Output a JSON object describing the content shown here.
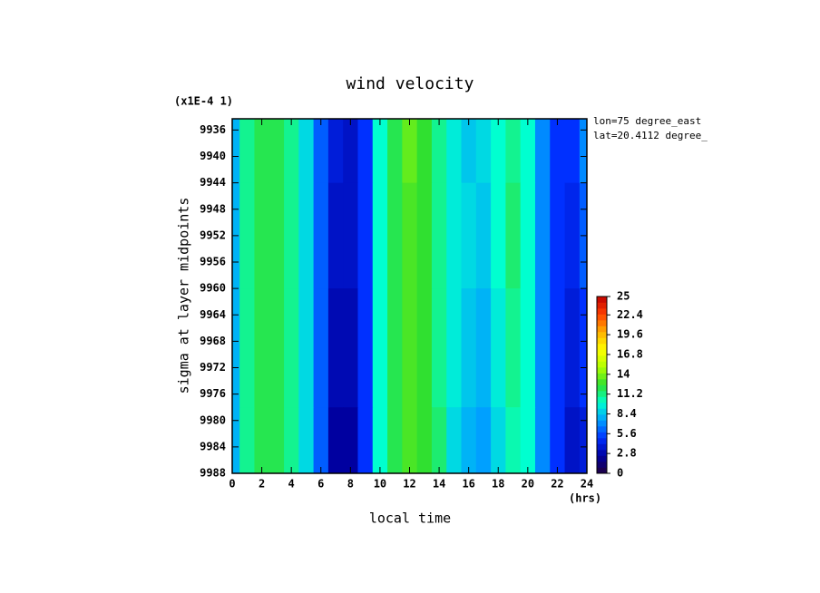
{
  "chart_data": {
    "type": "contour",
    "title": "wind velocity",
    "multiplier_label": "(x1E-4 1)",
    "x_label": "local time",
    "x_unit": "(hrs)",
    "y_label": "sigma at layer midpoints",
    "annotations": [
      "lon=75 degree_east",
      "lat=20.4112 degree_"
    ],
    "x": [
      0,
      1,
      2,
      3,
      4,
      5,
      6,
      7,
      8,
      9,
      10,
      11,
      12,
      13,
      14,
      15,
      16,
      17,
      18,
      19,
      20,
      21,
      22,
      23,
      24
    ],
    "y": [
      9936,
      9952,
      9968,
      9988
    ],
    "z": [
      [
        8,
        11,
        12,
        12,
        11,
        9,
        6,
        4,
        3.5,
        5,
        10,
        12,
        13.5,
        12.5,
        11,
        9.5,
        8.5,
        9,
        10,
        11,
        10,
        7,
        5,
        5,
        7
      ],
      [
        8,
        11,
        12,
        12,
        11,
        9,
        6,
        3.5,
        3.5,
        5,
        10,
        12,
        13,
        12.5,
        11,
        9.5,
        9,
        8.5,
        10,
        11.5,
        10,
        7,
        5,
        4.5,
        6
      ],
      [
        8,
        11,
        12,
        12,
        11,
        9,
        6,
        3,
        3,
        5,
        10,
        12,
        13,
        12.5,
        11,
        9.5,
        8.5,
        8,
        9.5,
        11,
        10,
        7,
        5,
        4,
        5
      ],
      [
        8,
        11,
        12,
        12,
        11,
        9,
        6,
        2.5,
        2.5,
        5,
        10,
        12,
        13,
        12.5,
        11.5,
        9,
        8,
        7.5,
        9,
        10.5,
        10,
        7,
        5,
        3.5,
        4
      ]
    ],
    "xlim": [
      0,
      24
    ],
    "xticks": [
      0,
      2,
      4,
      6,
      8,
      10,
      12,
      14,
      16,
      18,
      20,
      22,
      24
    ],
    "ylim": [
      9988,
      9934.3
    ],
    "yticks": [
      9936,
      9940,
      9944,
      9948,
      9952,
      9956,
      9960,
      9964,
      9968,
      9972,
      9976,
      9980,
      9984,
      9988
    ],
    "colorbar_ticks": [
      0,
      2.8,
      5.6,
      8.4,
      11.2,
      14,
      16.8,
      19.6,
      22.4,
      25
    ],
    "colormap": [
      "#200040",
      "#0000a0",
      "#0030ff",
      "#00a0ff",
      "#00ffd0",
      "#30e030",
      "#b0ff00",
      "#ffff00",
      "#ffb000",
      "#ff4000",
      "#c00000"
    ]
  }
}
